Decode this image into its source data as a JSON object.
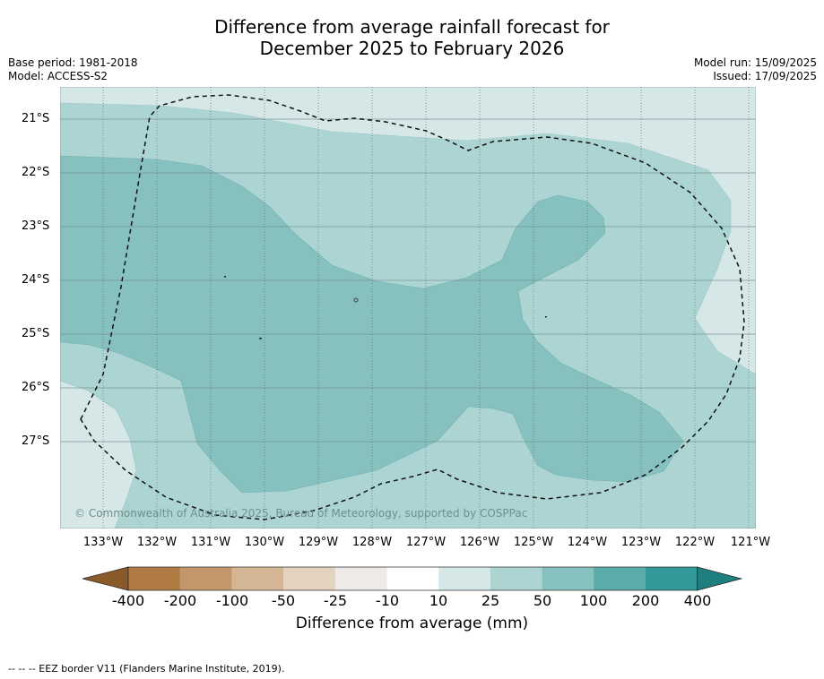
{
  "title_line1": "Difference from average rainfall forecast for",
  "title_line2": "December 2025 to February 2026",
  "base_period": "Base period: 1981-2018",
  "model": "Model: ACCESS-S2",
  "model_run": "Model run: 15/09/2025",
  "issued": "Issued: 17/09/2025",
  "copyright": "© Commonwealth of Australia 2025, Bureau of Meteorology, supported by COSPPac",
  "latitudes": [
    "21°S",
    "22°S",
    "23°S",
    "24°S",
    "25°S",
    "26°S",
    "27°S"
  ],
  "longitudes": [
    "133°W",
    "132°W",
    "131°W",
    "130°W",
    "129°W",
    "128°W",
    "127°W",
    "126°W",
    "125°W",
    "124°W",
    "123°W",
    "122°W",
    "121°W"
  ],
  "colorbar": {
    "title": "Difference from average (mm)",
    "labels": [
      "-400",
      "-200",
      "-100",
      "-50",
      "-25",
      "-10",
      "10",
      "25",
      "50",
      "100",
      "200",
      "400"
    ],
    "colors": [
      "#8b5a2b",
      "#b07a43",
      "#c2976c",
      "#d4b594",
      "#e4d2c0",
      "#eeeae7",
      "#ffffff",
      "#d5e8e7",
      "#acd4d3",
      "#86c0bf",
      "#5aacab",
      "#33999a",
      "#1f7f7f"
    ]
  },
  "map_colors": {
    "light": "#d5e8e7",
    "mid": "#acd4d3",
    "dark": "#86c0bf"
  },
  "footnote": "-- -- -- EEZ border V11 (Flanders Marine Institute, 2019)."
}
